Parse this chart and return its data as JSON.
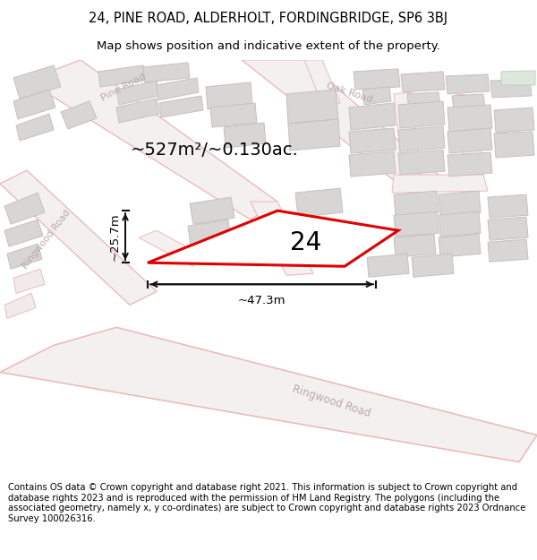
{
  "title_line1": "24, PINE ROAD, ALDERHOLT, FORDINGBRIDGE, SP6 3BJ",
  "title_line2": "Map shows position and indicative extent of the property.",
  "footer_text": "Contains OS data © Crown copyright and database right 2021. This information is subject to Crown copyright and database rights 2023 and is reproduced with the permission of HM Land Registry. The polygons (including the associated geometry, namely x, y co-ordinates) are subject to Crown copyright and database rights 2023 Ordnance Survey 100026316.",
  "area_label": "~527m²/~0.130ac.",
  "property_number": "24",
  "width_label": "~47.3m",
  "height_label": "~25.7m",
  "map_bg": "#f7f4f4",
  "road_color": "#ebbcbc",
  "road_fill": "#f5f0f0",
  "building_color": "#d8d5d5",
  "building_edge": "#c8c0c0",
  "plot_fill": "#f0ecec",
  "highlight_color": "#e00000",
  "road_label_color": "#b8aaaa",
  "dim_line_color": "#111111",
  "title_fontsize": 10.5,
  "subtitle_fontsize": 9.5,
  "footer_fontsize": 7.2,
  "area_fontsize": 14,
  "number_fontsize": 20,
  "dim_fontsize": 9.5
}
